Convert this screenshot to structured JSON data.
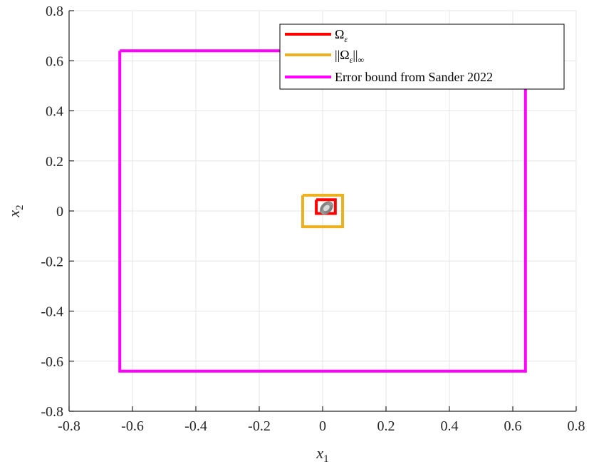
{
  "chart_data": {
    "type": "line",
    "xlabel": "x",
    "xlabel_sub": "1",
    "ylabel": "x",
    "ylabel_sub": "2",
    "xlim": [
      -0.8,
      0.8
    ],
    "ylim": [
      -0.8,
      0.8
    ],
    "x_ticks": [
      "-0.8",
      "-0.6",
      "-0.4",
      "-0.2",
      "0",
      "0.2",
      "0.4",
      "0.6",
      "0.8"
    ],
    "y_ticks": [
      "0.8",
      "0.6",
      "0.4",
      "0.2",
      "0",
      "-0.2",
      "-0.4",
      "-0.6",
      "-0.8"
    ],
    "x_tick_values": [
      -0.8,
      -0.6,
      -0.4,
      -0.2,
      0,
      0.2,
      0.4,
      0.6,
      0.8
    ],
    "y_tick_values": [
      0.8,
      0.6,
      0.4,
      0.2,
      0,
      -0.2,
      -0.4,
      -0.6,
      -0.8
    ],
    "grid": true,
    "legend_position": "top-right",
    "series": [
      {
        "name": "Ω",
        "name_sub": "ε",
        "color": "#ff0000",
        "x": [
          -0.02,
          0.04,
          0.04,
          -0.02,
          -0.02
        ],
        "y": [
          0.045,
          0.045,
          -0.01,
          -0.01,
          0.045
        ]
      },
      {
        "name": "||Ω",
        "name_sub1": "ε",
        "name_mid": "||",
        "name_sub2": "∞",
        "color": "#edb120",
        "x": [
          -0.063,
          0.063,
          0.063,
          -0.063,
          -0.063
        ],
        "y": [
          0.063,
          0.063,
          -0.063,
          -0.063,
          0.063
        ]
      },
      {
        "name": "Error bound from Sander 2022",
        "color": "#ff00ff",
        "x": [
          -0.64,
          0.64,
          0.64,
          -0.64,
          -0.64
        ],
        "y": [
          0.64,
          0.64,
          -0.64,
          -0.64,
          0.64
        ]
      }
    ],
    "inner_curves_color": "#808080"
  }
}
